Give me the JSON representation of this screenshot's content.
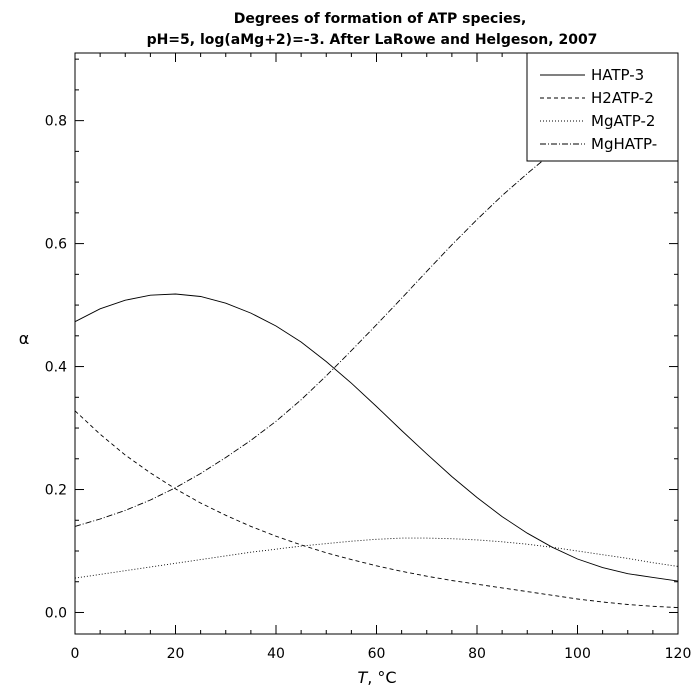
{
  "chart_data": {
    "type": "line",
    "title": "Degrees of formation of ATP species,",
    "subtitle": "pH=5, log(aMg+2)=-3. After LaRowe and Helgeson, 2007",
    "xlabel_italic": "T",
    "xlabel_unit": ", °C",
    "ylabel": "α",
    "xlim": [
      0,
      120
    ],
    "ylim": [
      -0.035,
      0.91
    ],
    "xticks": [
      0,
      20,
      40,
      60,
      80,
      100,
      120
    ],
    "xtick_labels": [
      "0",
      "20",
      "40",
      "60",
      "80",
      "100",
      "120"
    ],
    "yticks": [
      0.0,
      0.2,
      0.4,
      0.6,
      0.8
    ],
    "ytick_labels": [
      "0.0",
      "0.2",
      "0.4",
      "0.6",
      "0.8"
    ],
    "grid": false,
    "legend_position": "top-right",
    "x": [
      0,
      5,
      10,
      15,
      20,
      25,
      30,
      35,
      40,
      45,
      50,
      55,
      60,
      65,
      70,
      75,
      80,
      85,
      90,
      95,
      100,
      105,
      110,
      115,
      120
    ],
    "series": [
      {
        "name": "HATP-3",
        "dash": "solid",
        "values": [
          0.473,
          0.494,
          0.508,
          0.516,
          0.518,
          0.514,
          0.503,
          0.487,
          0.466,
          0.44,
          0.408,
          0.373,
          0.335,
          0.296,
          0.258,
          0.221,
          0.187,
          0.156,
          0.129,
          0.106,
          0.087,
          0.073,
          0.063,
          0.057,
          0.051
        ]
      },
      {
        "name": "H2ATP-2",
        "dash": "dashed",
        "values": [
          0.328,
          0.29,
          0.256,
          0.227,
          0.201,
          0.178,
          0.158,
          0.14,
          0.124,
          0.11,
          0.097,
          0.086,
          0.076,
          0.067,
          0.059,
          0.052,
          0.046,
          0.04,
          0.034,
          0.028,
          0.022,
          0.017,
          0.013,
          0.01,
          0.008
        ]
      },
      {
        "name": "MgATP-2",
        "dash": "dotted",
        "values": [
          0.056,
          0.062,
          0.068,
          0.074,
          0.08,
          0.086,
          0.092,
          0.098,
          0.103,
          0.108,
          0.112,
          0.116,
          0.119,
          0.121,
          0.121,
          0.12,
          0.118,
          0.115,
          0.111,
          0.106,
          0.1,
          0.094,
          0.088,
          0.081,
          0.075
        ]
      },
      {
        "name": "MgHATP-",
        "dash": "dashdot",
        "values": [
          0.14,
          0.152,
          0.166,
          0.183,
          0.203,
          0.226,
          0.252,
          0.28,
          0.311,
          0.346,
          0.385,
          0.426,
          0.468,
          0.511,
          0.555,
          0.598,
          0.639,
          0.678,
          0.714,
          0.748,
          0.779,
          0.808,
          0.834,
          0.858,
          0.88
        ]
      }
    ]
  }
}
